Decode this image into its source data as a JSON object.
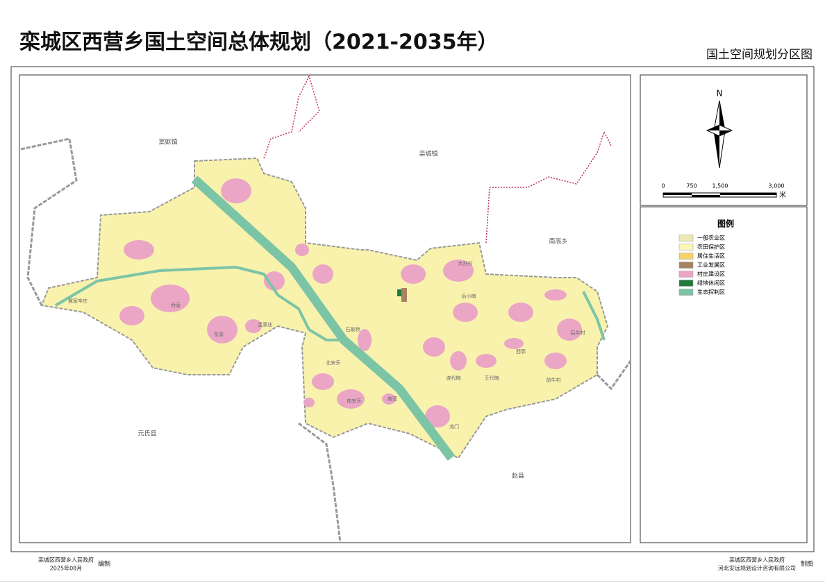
{
  "header": {
    "title": "栾城区西营乡国土空间总体规划（2021-2035年）",
    "subtitle": "国土空间规划分区图"
  },
  "map": {
    "regions": [
      "窦妪镇",
      "栾城镇",
      "南高乡",
      "元氏县",
      "赵县"
    ],
    "villages": [
      "冀家辛庄",
      "西营",
      "东营",
      "北安乐",
      "南安乐",
      "石板桥",
      "龙门",
      "王代梅",
      "连代梅",
      "后小梅",
      "大孙村",
      "西郭",
      "后牛村",
      "前牛村",
      "孟家庄",
      "南营"
    ]
  },
  "north_arrow": {
    "label": "N"
  },
  "scale_bar": {
    "labels": [
      "0",
      "750",
      "1,500",
      "3,000"
    ],
    "unit": "米"
  },
  "legend": {
    "title": "图例",
    "items": [
      {
        "label": "一般农业区",
        "color": "#ede9b4"
      },
      {
        "label": "农田保护区",
        "color": "#fbf6b8"
      },
      {
        "label": "居住生活区",
        "color": "#f7d26a"
      },
      {
        "label": "工业发展区",
        "color": "#a78461"
      },
      {
        "label": "村庄建设区",
        "color": "#eaa6c4"
      },
      {
        "label": "绿地休闲区",
        "color": "#1f7a3c"
      },
      {
        "label": "生态控制区",
        "color": "#7cc4a6"
      }
    ]
  },
  "footer": {
    "left": {
      "org": "栾城区西营乡人民政府",
      "date": "2025年08月",
      "role": "编制"
    },
    "right": {
      "org": "栾城区西营乡人民政府",
      "company": "河北安远规划设计咨询有限公司",
      "role": "制图"
    }
  }
}
